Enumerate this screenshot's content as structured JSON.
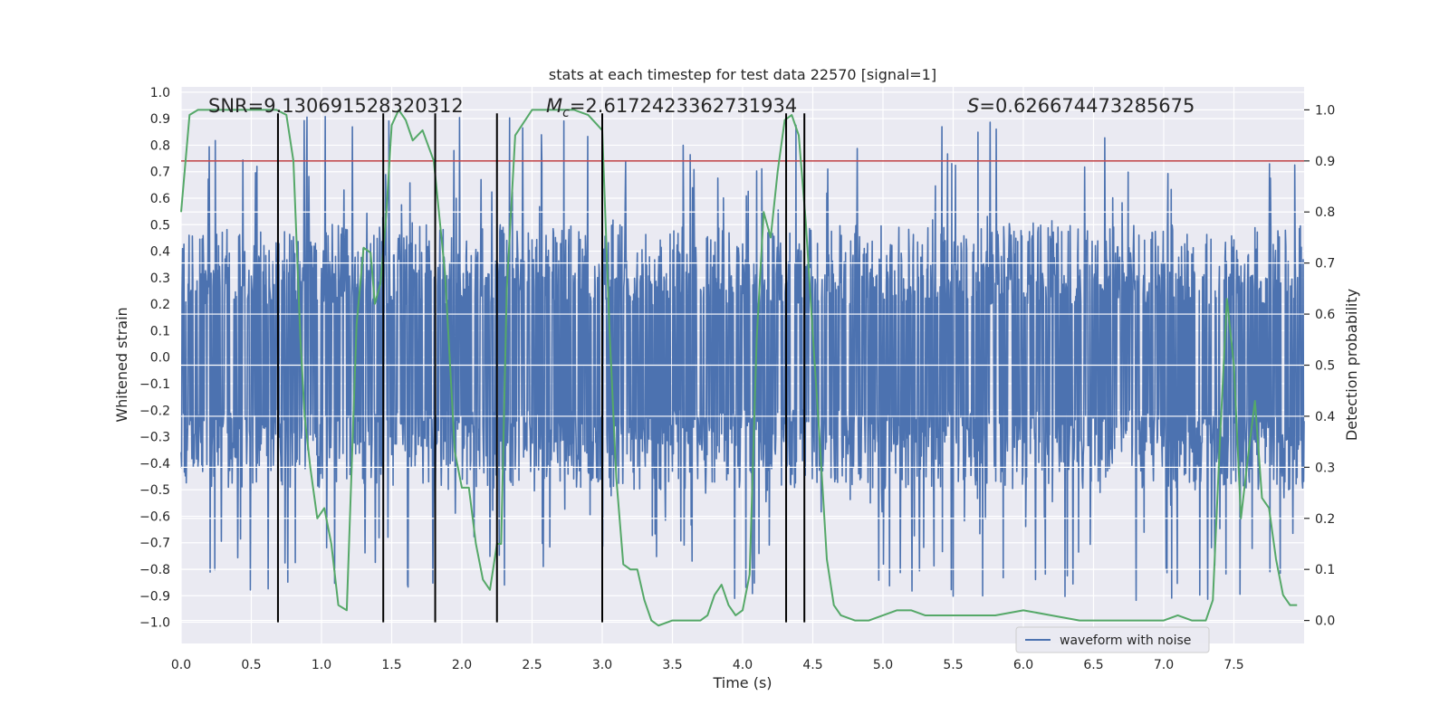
{
  "chart_data": {
    "type": "line",
    "title": "stats at each timestep for test data 22570 [signal=1]",
    "xlabel": "Time (s)",
    "ylabel": "Whitened strain",
    "y2label": "Detection probability",
    "xlim": [
      0.0,
      8.0
    ],
    "ylim": [
      -1.08,
      1.02
    ],
    "y2lim": [
      -0.045,
      1.045
    ],
    "xticks": [
      "0.0",
      "0.5",
      "1.0",
      "1.5",
      "2.0",
      "2.5",
      "3.0",
      "3.5",
      "4.0",
      "4.5",
      "5.0",
      "5.5",
      "6.0",
      "6.5",
      "7.0",
      "7.5"
    ],
    "xtick_values": [
      0.0,
      0.5,
      1.0,
      1.5,
      2.0,
      2.5,
      3.0,
      3.5,
      4.0,
      4.5,
      5.0,
      5.5,
      6.0,
      6.5,
      7.0,
      7.5
    ],
    "yticks": [
      "1.0",
      "0.9",
      "0.8",
      "0.7",
      "0.6",
      "0.5",
      "0.4",
      "0.3",
      "0.2",
      "0.1",
      "0.0",
      "−0.1",
      "−0.2",
      "−0.3",
      "−0.4",
      "−0.5",
      "−0.6",
      "−0.7",
      "−0.8",
      "−0.9",
      "−1.0"
    ],
    "ytick_values": [
      1.0,
      0.9,
      0.8,
      0.7,
      0.6,
      0.5,
      0.4,
      0.3,
      0.2,
      0.1,
      0.0,
      -0.1,
      -0.2,
      -0.3,
      -0.4,
      -0.5,
      -0.6,
      -0.7,
      -0.8,
      -0.9,
      -1.0
    ],
    "y2ticks": [
      "1.0",
      "0.9",
      "0.8",
      "0.7",
      "0.6",
      "0.5",
      "0.4",
      "0.3",
      "0.2",
      "0.1",
      "0.0"
    ],
    "y2tick_values": [
      1.0,
      0.9,
      0.8,
      0.7,
      0.6,
      0.5,
      0.4,
      0.3,
      0.2,
      0.1,
      0.0
    ],
    "annotations": {
      "snr": "SNR=9.130691528320312",
      "mc_symbol": "M",
      "mc_sub": "c",
      "mc_value": "=2.6172423362731934",
      "s_symbol": "S",
      "s_value": "=0.626674473285675"
    },
    "legend": {
      "label": "waveform with noise",
      "placement": "lower-right"
    },
    "waveform": {
      "name": "waveform with noise",
      "color": "#4c72b0",
      "t_start": 0.0,
      "t_end": 8.0,
      "core_amplitude": 0.33,
      "typical_peak": 0.5,
      "max_peak": 0.92,
      "min_trough": -1.0
    },
    "probability": {
      "color": "#55a868",
      "t": [
        0.0,
        0.06,
        0.12,
        0.2,
        0.3,
        0.4,
        0.5,
        0.6,
        0.68,
        0.75,
        0.8,
        0.85,
        0.88,
        0.92,
        0.97,
        1.02,
        1.07,
        1.12,
        1.18,
        1.25,
        1.3,
        1.35,
        1.38,
        1.42,
        1.46,
        1.5,
        1.55,
        1.6,
        1.65,
        1.72,
        1.8,
        1.88,
        1.95,
        2.0,
        2.05,
        2.1,
        2.15,
        2.2,
        2.25,
        2.28,
        2.32,
        2.38,
        2.5,
        2.6,
        2.7,
        2.8,
        2.9,
        3.0,
        3.05,
        3.1,
        3.15,
        3.2,
        3.25,
        3.3,
        3.35,
        3.4,
        3.5,
        3.6,
        3.7,
        3.75,
        3.8,
        3.85,
        3.9,
        3.95,
        4.0,
        4.05,
        4.1,
        4.15,
        4.2,
        4.25,
        4.3,
        4.35,
        4.4,
        4.45,
        4.5,
        4.55,
        4.6,
        4.65,
        4.7,
        4.8,
        4.9,
        5.0,
        5.1,
        5.2,
        5.3,
        5.4,
        5.6,
        5.8,
        6.0,
        6.2,
        6.4,
        6.6,
        6.8,
        7.0,
        7.1,
        7.2,
        7.3,
        7.35,
        7.4,
        7.45,
        7.5,
        7.55,
        7.6,
        7.65,
        7.7,
        7.75,
        7.8,
        7.85,
        7.9,
        7.95
      ],
      "p": [
        0.8,
        0.99,
        1.0,
        1.0,
        1.0,
        1.0,
        1.0,
        1.0,
        1.0,
        0.99,
        0.9,
        0.55,
        0.4,
        0.3,
        0.2,
        0.22,
        0.15,
        0.03,
        0.02,
        0.58,
        0.73,
        0.72,
        0.62,
        0.66,
        0.79,
        0.97,
        1.0,
        0.98,
        0.94,
        0.96,
        0.9,
        0.68,
        0.33,
        0.26,
        0.26,
        0.15,
        0.08,
        0.06,
        0.15,
        0.15,
        0.65,
        0.95,
        1.0,
        1.0,
        1.0,
        1.0,
        0.99,
        0.96,
        0.58,
        0.28,
        0.11,
        0.1,
        0.1,
        0.04,
        0.0,
        -0.01,
        0.0,
        0.0,
        0.0,
        0.01,
        0.05,
        0.07,
        0.03,
        0.01,
        0.02,
        0.09,
        0.55,
        0.8,
        0.75,
        0.88,
        0.98,
        0.99,
        0.95,
        0.78,
        0.56,
        0.35,
        0.12,
        0.03,
        0.01,
        0.0,
        0.0,
        0.01,
        0.02,
        0.02,
        0.01,
        0.01,
        0.01,
        0.01,
        0.02,
        0.01,
        0.0,
        0.0,
        0.0,
        0.0,
        0.01,
        0.0,
        0.0,
        0.04,
        0.35,
        0.63,
        0.5,
        0.2,
        0.32,
        0.43,
        0.24,
        0.22,
        0.12,
        0.05,
        0.03,
        0.03
      ]
    },
    "threshold": {
      "color": "#c44e52",
      "value": 0.9,
      "axis": "right"
    },
    "vertical_lines": {
      "color": "#000000",
      "x": [
        0.69,
        1.44,
        1.81,
        2.25,
        3.0,
        4.31,
        4.44
      ],
      "y_top": 0.92,
      "y_bottom": -1.0
    },
    "grid": true,
    "colors": {
      "plot_background": "#eaeaf2",
      "grid": "#ffffff"
    }
  }
}
